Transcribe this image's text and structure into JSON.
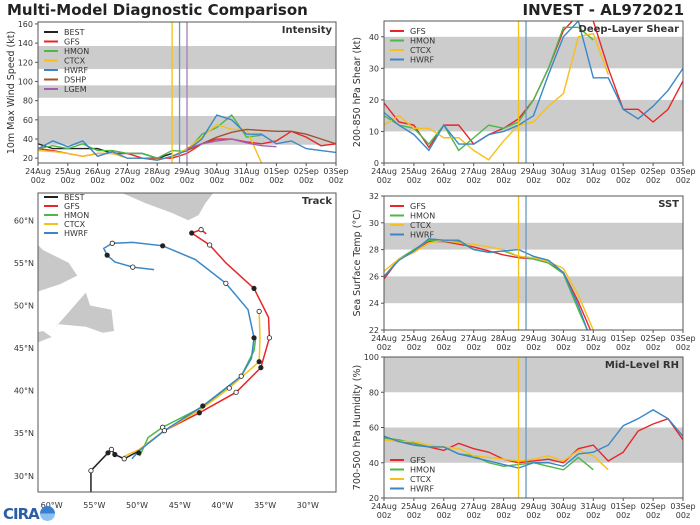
{
  "header": {
    "title": "Multi-Model Diagnostic Comparison",
    "storm": "INVEST - AL972021"
  },
  "logo_text": "CIRA",
  "colors": {
    "BEST": "#222222",
    "GFS": "#e8262a",
    "HMON": "#4cb848",
    "CTCX": "#f5c01a",
    "HWRF": "#3a87c8",
    "DSHP": "#a0522d",
    "LGEM": "#a35db5",
    "band": "#cccccc"
  },
  "x_ticks": [
    [
      "24Aug",
      "00z"
    ],
    [
      "25Aug",
      "00z"
    ],
    [
      "26Aug",
      "00z"
    ],
    [
      "27Aug",
      "00z"
    ],
    [
      "28Aug",
      "00z"
    ],
    [
      "29Aug",
      "00z"
    ],
    [
      "30Aug",
      "00z"
    ],
    [
      "31Aug",
      "00z"
    ],
    [
      "01Sep",
      "00z"
    ],
    [
      "02Sep",
      "00z"
    ],
    [
      "03Sep",
      "00z"
    ]
  ],
  "times": [
    "24Aug00z",
    "24Aug12z",
    "25Aug00z",
    "25Aug12z",
    "26Aug00z",
    "26Aug12z",
    "27Aug00z",
    "27Aug12z",
    "28Aug00z",
    "28Aug12z",
    "29Aug00z",
    "29Aug12z",
    "30Aug00z",
    "30Aug12z",
    "31Aug00z",
    "31Aug12z",
    "01Sep00z",
    "01Sep12z",
    "02Sep00z",
    "02Sep12z",
    "03Sep00z"
  ],
  "chart_data": [
    {
      "type": "line",
      "title": "Intensity",
      "ylabel": "10m Max Wind Speed (kt)",
      "ylim": [
        15,
        162
      ],
      "yticks": [
        20,
        40,
        60,
        80,
        100,
        120,
        140,
        160
      ],
      "bands": [
        [
          34,
          64
        ],
        [
          83,
          96
        ],
        [
          113,
          137
        ]
      ],
      "vlines": [
        {
          "t": "28Aug12z",
          "color": "#f5c01a"
        },
        {
          "t": "28Aug18z",
          "color": "#6a98c0"
        },
        {
          "t": "29Aug00z",
          "color": "#a87cb8"
        }
      ],
      "legend": "top-left",
      "series": [
        {
          "name": "BEST",
          "values": [
            35,
            30,
            30,
            30,
            30,
            25,
            25,
            25,
            20,
            25,
            null,
            null,
            null,
            null,
            null,
            null,
            null,
            null,
            null,
            null,
            null
          ]
        },
        {
          "name": "GFS",
          "values": [
            30,
            28,
            25,
            22,
            25,
            25,
            25,
            20,
            20,
            20,
            25,
            35,
            40,
            40,
            37,
            35,
            38,
            48,
            42,
            33,
            35
          ]
        },
        {
          "name": "HMON",
          "values": [
            30,
            33,
            30,
            35,
            28,
            28,
            25,
            25,
            20,
            28,
            27,
            45,
            52,
            65,
            42,
            44,
            null,
            null,
            null,
            null,
            null
          ]
        },
        {
          "name": "CTCX",
          "values": [
            28,
            27,
            25,
            22,
            25,
            25,
            20,
            20,
            18,
            22,
            30,
            42,
            55,
            50,
            50,
            15,
            null,
            null,
            null,
            null,
            null
          ]
        },
        {
          "name": "HWRF",
          "values": [
            30,
            38,
            32,
            38,
            22,
            27,
            20,
            20,
            18,
            22,
            28,
            40,
            65,
            60,
            45,
            45,
            35,
            38,
            30,
            28,
            26
          ]
        },
        {
          "name": "DSHP",
          "values": [
            null,
            null,
            null,
            null,
            null,
            null,
            null,
            null,
            null,
            null,
            28,
            35,
            42,
            47,
            50,
            49,
            48,
            48,
            45,
            40,
            35
          ]
        },
        {
          "name": "LGEM",
          "values": [
            null,
            null,
            null,
            null,
            null,
            null,
            null,
            null,
            null,
            null,
            30,
            35,
            38,
            40,
            36,
            33,
            32,
            null,
            null,
            null,
            null
          ]
        }
      ]
    },
    {
      "type": "line",
      "title": "Deep-Layer Shear",
      "ylabel": "200-850 hPa Shear (kt)",
      "ylim": [
        0,
        45
      ],
      "yticks": [
        0,
        10,
        20,
        30,
        40
      ],
      "bands": [
        [
          10,
          20
        ],
        [
          30,
          40
        ]
      ],
      "vlines": [
        {
          "t": "28Aug12z",
          "color": "#f5c01a"
        },
        {
          "t": "28Aug18z",
          "color": "#6a98c0"
        }
      ],
      "legend": "top-left",
      "series": [
        {
          "name": "GFS",
          "values": [
            19,
            13,
            12,
            5,
            12,
            12,
            6,
            9,
            11,
            14,
            20,
            30,
            42,
            47,
            45,
            30,
            17,
            17,
            13,
            17,
            26
          ]
        },
        {
          "name": "HMON",
          "values": [
            15,
            12,
            11,
            6,
            12,
            4,
            8,
            12,
            11,
            13,
            20,
            30,
            43,
            43,
            39,
            null,
            null,
            null,
            null,
            null,
            null
          ]
        },
        {
          "name": "CTCX",
          "values": [
            12,
            15,
            11,
            11,
            8,
            8,
            4,
            1,
            7,
            12,
            13,
            18,
            22,
            40,
            41,
            28,
            null,
            null,
            null,
            null,
            null
          ]
        },
        {
          "name": "HWRF",
          "values": [
            16,
            12,
            9,
            4,
            12,
            6,
            6,
            9,
            10,
            12,
            15,
            28,
            40,
            45,
            27,
            27,
            17,
            14,
            18,
            23,
            30
          ]
        }
      ]
    },
    {
      "type": "line",
      "title": "SST",
      "ylabel": "Sea Surface Temp (°C)",
      "ylim": [
        22,
        32
      ],
      "yticks": [
        22,
        24,
        26,
        28,
        30,
        32
      ],
      "bands": [
        [
          24,
          26
        ],
        [
          28,
          30
        ],
        [
          32,
          34
        ]
      ],
      "vlines": [
        {
          "t": "28Aug12z",
          "color": "#f5c01a"
        },
        {
          "t": "28Aug18z",
          "color": "#6a98c0"
        }
      ],
      "legend": "top-left",
      "series": [
        {
          "name": "GFS",
          "values": [
            25.8,
            27.3,
            27.8,
            28.6,
            28.6,
            28.4,
            28.2,
            27.9,
            27.6,
            27.4,
            27.3,
            27.0,
            26.3,
            24.1,
            21.5,
            null,
            null,
            null,
            null,
            null,
            null
          ]
        },
        {
          "name": "HMON",
          "values": [
            26.0,
            27.3,
            28.0,
            28.7,
            28.6,
            28.6,
            28.0,
            27.8,
            27.9,
            27.5,
            27.3,
            27.0,
            26.2,
            23.5,
            21.0,
            null,
            null,
            null,
            null,
            null,
            null
          ]
        },
        {
          "name": "CTCX",
          "values": [
            26.4,
            27.3,
            27.8,
            28.5,
            28.7,
            28.5,
            28.4,
            28.2,
            28.0,
            27.5,
            27.4,
            27.1,
            26.6,
            24.6,
            22.0,
            null,
            null,
            null,
            null,
            null,
            null
          ]
        },
        {
          "name": "HWRF",
          "values": [
            26.0,
            27.2,
            27.9,
            28.8,
            28.7,
            28.7,
            28.0,
            27.8,
            27.9,
            28.0,
            27.5,
            27.2,
            26.3,
            23.8,
            20.8,
            null,
            null,
            null,
            null,
            null,
            null
          ]
        }
      ]
    },
    {
      "type": "line",
      "title": "Mid-Level RH",
      "ylabel": "700-500 hPa Humidity (%)",
      "ylim": [
        20,
        100
      ],
      "yticks": [
        20,
        40,
        60,
        80,
        100
      ],
      "bands": [
        [
          40,
          60
        ],
        [
          80,
          100
        ]
      ],
      "vlines": [
        {
          "t": "28Aug12z",
          "color": "#f5c01a"
        },
        {
          "t": "28Aug18z",
          "color": "#6a98c0"
        }
      ],
      "legend": "bottom-left",
      "series": [
        {
          "name": "GFS",
          "values": [
            55,
            52,
            51,
            49,
            47,
            51,
            48,
            46,
            42,
            40,
            41,
            42,
            40,
            48,
            50,
            41,
            46,
            58,
            62,
            65,
            53
          ]
        },
        {
          "name": "HMON",
          "values": [
            54,
            53,
            51,
            49,
            49,
            45,
            44,
            40,
            38,
            39,
            40,
            38,
            36,
            43,
            36,
            null,
            null,
            null,
            null,
            null,
            null
          ]
        },
        {
          "name": "CTCX",
          "values": [
            53,
            52,
            52,
            50,
            49,
            48,
            44,
            43,
            42,
            41,
            42,
            44,
            41,
            47,
            44,
            36,
            null,
            null,
            null,
            null,
            null
          ]
        },
        {
          "name": "HWRF",
          "values": [
            55,
            52,
            50,
            49,
            49,
            45,
            43,
            41,
            39,
            37,
            40,
            40,
            38,
            45,
            46,
            50,
            61,
            65,
            70,
            65,
            55
          ]
        }
      ]
    },
    {
      "type": "map",
      "title": "Track",
      "lon_ticks": [
        [
          "-60",
          "60°W"
        ],
        [
          "-55",
          "55°W"
        ],
        [
          "-50",
          "50°W"
        ],
        [
          "-45",
          "45°W"
        ],
        [
          "-40",
          "40°W"
        ],
        [
          "-35",
          "35°W"
        ],
        [
          "-30",
          "30°W"
        ]
      ],
      "lat_ticks": [
        [
          "30",
          "30°N"
        ],
        [
          "35",
          "35°N"
        ],
        [
          "40",
          "40°N"
        ],
        [
          "45",
          "45°N"
        ],
        [
          "50",
          "50°N"
        ],
        [
          "55",
          "55°N"
        ],
        [
          "60",
          "60°N"
        ]
      ],
      "legend": "top-left",
      "tracks": [
        {
          "name": "BEST",
          "points": [
            [
              -55.4,
              28.0
            ],
            [
              -55.4,
              30.6
            ],
            [
              -53.4,
              32.7
            ],
            [
              -53.0,
              33.1
            ],
            [
              -52.6,
              32.5
            ],
            [
              -51.5,
              32.0
            ],
            [
              -49.8,
              32.9
            ]
          ],
          "markers": [
            [
              -55.4,
              30.6,
              0
            ],
            [
              -53.4,
              32.7,
              1
            ],
            [
              -53.0,
              33.1,
              0
            ],
            [
              -52.6,
              32.5,
              1
            ],
            [
              -51.5,
              32.0,
              0
            ]
          ]
        },
        {
          "name": "GFS",
          "points": [
            [
              -49.7,
              33.1
            ],
            [
              -46.8,
              35.3
            ],
            [
              -42.7,
              37.4
            ],
            [
              -38.4,
              39.8
            ],
            [
              -35.5,
              42.7
            ],
            [
              -34.5,
              46.2
            ],
            [
              -34.6,
              48.6
            ],
            [
              -36.3,
              52.0
            ],
            [
              -39.6,
              55.0
            ],
            [
              -41.5,
              57.1
            ],
            [
              -43.6,
              58.5
            ],
            [
              -42.5,
              58.9
            ],
            [
              -41.9,
              58.4
            ]
          ],
          "markers": [
            [
              -42.7,
              37.4,
              1
            ],
            [
              -38.4,
              39.8,
              0
            ],
            [
              -35.5,
              42.7,
              1
            ],
            [
              -34.5,
              46.2,
              0
            ],
            [
              -36.3,
              52.0,
              1
            ],
            [
              -41.5,
              57.1,
              0
            ],
            [
              -43.6,
              58.5,
              1
            ],
            [
              -42.5,
              58.9,
              0
            ]
          ]
        },
        {
          "name": "HMON",
          "points": [
            [
              -49.7,
              32.3
            ],
            [
              -48.7,
              34.5
            ],
            [
              -47.0,
              35.7
            ],
            [
              -42.1,
              38.2
            ],
            [
              -37.8,
              41.7
            ],
            [
              -36.3,
              44.7
            ],
            [
              -36.1,
              46.2
            ]
          ],
          "markers": [
            [
              -47.0,
              35.7,
              0
            ]
          ]
        },
        {
          "name": "CTCX",
          "points": [
            [
              -51.5,
              32.3
            ],
            [
              -49.7,
              33.1
            ],
            [
              -46.8,
              35.3
            ],
            [
              -42.5,
              37.8
            ],
            [
              -39.2,
              40.3
            ],
            [
              -35.7,
              43.4
            ],
            [
              -35.6,
              46.2
            ],
            [
              -35.7,
              49.3
            ]
          ],
          "markers": [
            [
              -39.2,
              40.3,
              0
            ],
            [
              -35.7,
              43.4,
              1
            ],
            [
              -35.7,
              49.3,
              0
            ]
          ]
        },
        {
          "name": "HWRF",
          "points": [
            [
              -50.6,
              32.0
            ],
            [
              -49.7,
              33.0
            ],
            [
              -46.8,
              35.3
            ],
            [
              -42.3,
              38.2
            ],
            [
              -37.8,
              41.7
            ],
            [
              -36.6,
              43.8
            ],
            [
              -36.3,
              46.2
            ],
            [
              -37.0,
              49.5
            ],
            [
              -39.6,
              52.6
            ],
            [
              -43.2,
              55.4
            ],
            [
              -47.0,
              57.0
            ],
            [
              -50.5,
              57.4
            ],
            [
              -52.9,
              57.3
            ],
            [
              -53.9,
              56.7
            ],
            [
              -53.5,
              55.9
            ],
            [
              -52.6,
              55.1
            ],
            [
              -50.5,
              54.5
            ],
            [
              -48.0,
              54.2
            ]
          ],
          "markers": [
            [
              -49.8,
              32.7,
              1
            ],
            [
              -46.8,
              35.3,
              0
            ],
            [
              -42.3,
              38.2,
              1
            ],
            [
              -37.8,
              41.7,
              0
            ],
            [
              -36.3,
              46.2,
              1
            ],
            [
              -39.6,
              52.6,
              0
            ],
            [
              -47.0,
              57.0,
              1
            ],
            [
              -52.9,
              57.3,
              0
            ],
            [
              -53.5,
              55.9,
              1
            ],
            [
              -50.5,
              54.5,
              0
            ]
          ]
        }
      ]
    }
  ]
}
